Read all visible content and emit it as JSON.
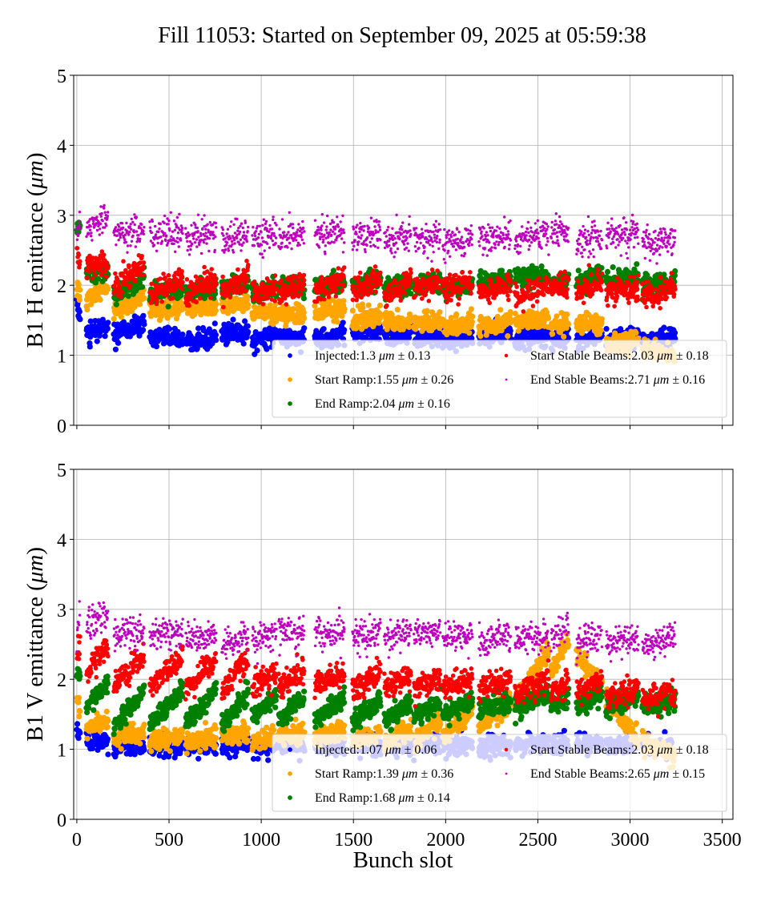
{
  "chart_data": {
    "title": "Fill 11053: Started on September 09, 2025 at 05:59:38",
    "xlabel": "Bunch slot",
    "xticks": [
      0,
      500,
      1000,
      1500,
      2000,
      2500,
      3000,
      3500
    ],
    "xlim": [
      -17,
      3558
    ],
    "grid": true,
    "legend_placement": "lower-right",
    "bunch_trains": [
      [
        0,
        17
      ],
      [
        52,
        169
      ],
      [
        200,
        365
      ],
      [
        395,
        573
      ],
      [
        590,
        755
      ],
      [
        786,
        929
      ],
      [
        951,
        1081
      ],
      [
        1094,
        1233
      ],
      [
        1290,
        1450
      ],
      [
        1494,
        1646
      ],
      [
        1667,
        1811
      ],
      [
        1828,
        1971
      ],
      [
        1984,
        2145
      ],
      [
        2180,
        2353
      ],
      [
        2375,
        2557
      ],
      [
        2571,
        2666
      ],
      [
        2709,
        2848
      ],
      [
        2870,
        3044
      ],
      [
        3066,
        3244
      ]
    ],
    "panels": [
      {
        "type": "scatter",
        "ylabel": "B1 H emittance (μm)",
        "ylim": [
          0,
          5
        ],
        "yticks": [
          0,
          1,
          2,
          3,
          4,
          5
        ],
        "series": [
          {
            "name": "Injected",
            "mean": "1.3",
            "unit": "μm",
            "std": "0.13",
            "color": "#0000ff",
            "marker": "large",
            "train_start_end": [
              [
                1.7,
                1.5
              ],
              [
                1.3,
                1.4
              ],
              [
                1.3,
                1.45
              ],
              [
                1.25,
                1.25
              ],
              [
                1.2,
                1.25
              ],
              [
                1.3,
                1.35
              ],
              [
                1.2,
                1.3
              ],
              [
                1.25,
                1.25
              ],
              [
                1.2,
                1.3
              ],
              [
                1.3,
                1.35
              ],
              [
                1.25,
                1.3
              ],
              [
                1.25,
                1.3
              ],
              [
                1.2,
                1.25
              ],
              [
                1.25,
                1.35
              ],
              [
                1.2,
                1.3
              ],
              [
                1.2,
                1.3
              ],
              [
                1.25,
                1.3
              ],
              [
                1.2,
                1.3
              ],
              [
                1.2,
                1.3
              ]
            ]
          },
          {
            "name": "Start Ramp",
            "mean": "1.55",
            "unit": "μm",
            "std": "0.26",
            "color": "#ffa500",
            "marker": "large",
            "train_start_end": [
              [
                1.9,
                1.9
              ],
              [
                1.8,
                2.0
              ],
              [
                1.65,
                1.85
              ],
              [
                1.65,
                1.7
              ],
              [
                1.7,
                1.7
              ],
              [
                1.75,
                1.75
              ],
              [
                1.6,
                1.6
              ],
              [
                1.6,
                1.55
              ],
              [
                1.6,
                1.7
              ],
              [
                1.5,
                1.55
              ],
              [
                1.5,
                1.45
              ],
              [
                1.45,
                1.5
              ],
              [
                1.4,
                1.45
              ],
              [
                1.4,
                1.5
              ],
              [
                1.45,
                1.5
              ],
              [
                1.45,
                1.5
              ],
              [
                1.45,
                1.45
              ],
              [
                1.15,
                1.2
              ],
              [
                1.1,
                1.0
              ]
            ]
          },
          {
            "name": "End Ramp",
            "mean": "2.04",
            "unit": "μm",
            "std": "0.16",
            "color": "#008000",
            "marker": "large",
            "train_start_end": [
              [
                2.8,
                2.9
              ],
              [
                2.2,
                2.2
              ],
              [
                1.85,
                2.1
              ],
              [
                1.9,
                1.95
              ],
              [
                1.9,
                1.95
              ],
              [
                1.95,
                2.05
              ],
              [
                1.9,
                1.95
              ],
              [
                1.95,
                2.0
              ],
              [
                1.95,
                2.05
              ],
              [
                2.0,
                2.05
              ],
              [
                1.95,
                2.0
              ],
              [
                2.0,
                2.05
              ],
              [
                1.95,
                2.0
              ],
              [
                2.05,
                2.1
              ],
              [
                2.1,
                2.15
              ],
              [
                2.0,
                2.1
              ],
              [
                2.05,
                2.15
              ],
              [
                2.05,
                2.1
              ],
              [
                2.0,
                2.05
              ]
            ]
          },
          {
            "name": "Start Stable Beams",
            "mean": "2.03",
            "unit": "μm",
            "std": "0.18",
            "color": "#ff0000",
            "marker": "medium",
            "train_start_end": [
              [
                2.5,
                2.4
              ],
              [
                2.3,
                2.3
              ],
              [
                1.95,
                2.3
              ],
              [
                1.85,
                2.1
              ],
              [
                1.85,
                2.1
              ],
              [
                1.85,
                2.2
              ],
              [
                1.85,
                2.0
              ],
              [
                1.9,
                2.05
              ],
              [
                1.9,
                2.1
              ],
              [
                1.9,
                2.1
              ],
              [
                1.85,
                2.05
              ],
              [
                1.95,
                2.05
              ],
              [
                1.95,
                2.05
              ],
              [
                1.9,
                2.0
              ],
              [
                1.85,
                2.0
              ],
              [
                1.95,
                2.0
              ],
              [
                1.9,
                2.05
              ],
              [
                1.9,
                1.95
              ],
              [
                1.85,
                1.95
              ]
            ]
          },
          {
            "name": "End Stable Beams",
            "mean": "2.71",
            "unit": "μm",
            "std": "0.16",
            "color": "#bf00bf",
            "marker": "small",
            "train_start_end": [
              [
                2.7,
                3.0
              ],
              [
                2.8,
                2.95
              ],
              [
                2.7,
                2.8
              ],
              [
                2.7,
                2.75
              ],
              [
                2.65,
                2.75
              ],
              [
                2.65,
                2.75
              ],
              [
                2.65,
                2.75
              ],
              [
                2.65,
                2.75
              ],
              [
                2.7,
                2.75
              ],
              [
                2.65,
                2.75
              ],
              [
                2.6,
                2.75
              ],
              [
                2.65,
                2.7
              ],
              [
                2.6,
                2.7
              ],
              [
                2.65,
                2.7
              ],
              [
                2.65,
                2.75
              ],
              [
                2.7,
                2.75
              ],
              [
                2.6,
                2.7
              ],
              [
                2.7,
                2.75
              ],
              [
                2.6,
                2.65
              ]
            ]
          }
        ]
      },
      {
        "type": "scatter",
        "ylabel": "B1 V emittance (μm)",
        "ylim": [
          0,
          5
        ],
        "yticks": [
          0,
          1,
          2,
          3,
          4,
          5
        ],
        "series": [
          {
            "name": "Injected",
            "mean": "1.07",
            "unit": "μm",
            "std": "0.06",
            "color": "#0000ff",
            "marker": "large",
            "train_start_end": [
              [
                1.3,
                1.2
              ],
              [
                1.1,
                1.1
              ],
              [
                1.05,
                1.05
              ],
              [
                1.05,
                1.05
              ],
              [
                1.0,
                1.05
              ],
              [
                1.05,
                1.1
              ],
              [
                1.05,
                1.05
              ],
              [
                1.05,
                1.05
              ],
              [
                1.05,
                1.05
              ],
              [
                1.05,
                1.05
              ],
              [
                1.05,
                1.05
              ],
              [
                1.05,
                1.1
              ],
              [
                1.05,
                1.05
              ],
              [
                1.05,
                1.05
              ],
              [
                1.05,
                1.1
              ],
              [
                1.05,
                1.1
              ],
              [
                1.05,
                1.1
              ],
              [
                1.05,
                1.1
              ],
              [
                1.05,
                1.0
              ]
            ]
          },
          {
            "name": "Start Ramp",
            "mean": "1.39",
            "unit": "μm",
            "std": "0.36",
            "color": "#ffa500",
            "marker": "large",
            "train_start_end": [
              [
                1.75,
                1.6
              ],
              [
                1.3,
                1.4
              ],
              [
                1.15,
                1.25
              ],
              [
                1.1,
                1.2
              ],
              [
                1.1,
                1.2
              ],
              [
                1.2,
                1.25
              ],
              [
                1.1,
                1.2
              ],
              [
                1.15,
                1.25
              ],
              [
                1.15,
                1.3
              ],
              [
                1.1,
                1.25
              ],
              [
                1.1,
                1.3
              ],
              [
                1.1,
                1.4
              ],
              [
                1.2,
                1.55
              ],
              [
                1.3,
                1.7
              ],
              [
                1.7,
                2.4
              ],
              [
                2.1,
                2.55
              ],
              [
                2.35,
                1.95
              ],
              [
                1.75,
                1.1
              ],
              [
                1.1,
                0.9
              ]
            ]
          },
          {
            "name": "End Ramp",
            "mean": "1.68",
            "unit": "μm",
            "std": "0.14",
            "color": "#008000",
            "marker": "large",
            "train_start_end": [
              [
                2.05,
                2.1
              ],
              [
                1.6,
                1.95
              ],
              [
                1.3,
                1.85
              ],
              [
                1.35,
                1.85
              ],
              [
                1.35,
                1.85
              ],
              [
                1.35,
                1.8
              ],
              [
                1.45,
                1.75
              ],
              [
                1.4,
                1.75
              ],
              [
                1.4,
                1.75
              ],
              [
                1.4,
                1.7
              ],
              [
                1.4,
                1.7
              ],
              [
                1.45,
                1.7
              ],
              [
                1.5,
                1.7
              ],
              [
                1.55,
                1.7
              ],
              [
                1.6,
                1.8
              ],
              [
                1.6,
                1.75
              ],
              [
                1.6,
                1.8
              ],
              [
                1.6,
                1.75
              ],
              [
                1.6,
                1.7
              ]
            ]
          },
          {
            "name": "Start Stable Beams",
            "mean": "2.03",
            "unit": "μm",
            "std": "0.18",
            "color": "#ff0000",
            "marker": "medium",
            "train_start_end": [
              [
                2.3,
                2.5
              ],
              [
                2.1,
                2.5
              ],
              [
                1.9,
                2.35
              ],
              [
                1.9,
                2.3
              ],
              [
                1.85,
                2.3
              ],
              [
                1.85,
                2.3
              ],
              [
                1.9,
                2.1
              ],
              [
                1.9,
                2.1
              ],
              [
                1.9,
                2.1
              ],
              [
                1.85,
                2.1
              ],
              [
                1.85,
                2.05
              ],
              [
                1.85,
                2.05
              ],
              [
                1.85,
                2.0
              ],
              [
                1.85,
                2.0
              ],
              [
                1.75,
                2.0
              ],
              [
                1.8,
                1.95
              ],
              [
                1.8,
                2.0
              ],
              [
                1.75,
                1.9
              ],
              [
                1.7,
                1.85
              ]
            ]
          },
          {
            "name": "End Stable Beams",
            "mean": "2.65",
            "unit": "μm",
            "std": "0.15",
            "color": "#bf00bf",
            "marker": "small",
            "train_start_end": [
              [
                2.6,
                3.0
              ],
              [
                2.7,
                2.95
              ],
              [
                2.65,
                2.7
              ],
              [
                2.6,
                2.7
              ],
              [
                2.55,
                2.65
              ],
              [
                2.45,
                2.6
              ],
              [
                2.55,
                2.65
              ],
              [
                2.65,
                2.7
              ],
              [
                2.65,
                2.7
              ],
              [
                2.6,
                2.65
              ],
              [
                2.6,
                2.7
              ],
              [
                2.6,
                2.7
              ],
              [
                2.55,
                2.65
              ],
              [
                2.55,
                2.65
              ],
              [
                2.55,
                2.65
              ],
              [
                2.6,
                2.75
              ],
              [
                2.5,
                2.65
              ],
              [
                2.5,
                2.6
              ],
              [
                2.5,
                2.6
              ]
            ]
          }
        ]
      }
    ]
  }
}
